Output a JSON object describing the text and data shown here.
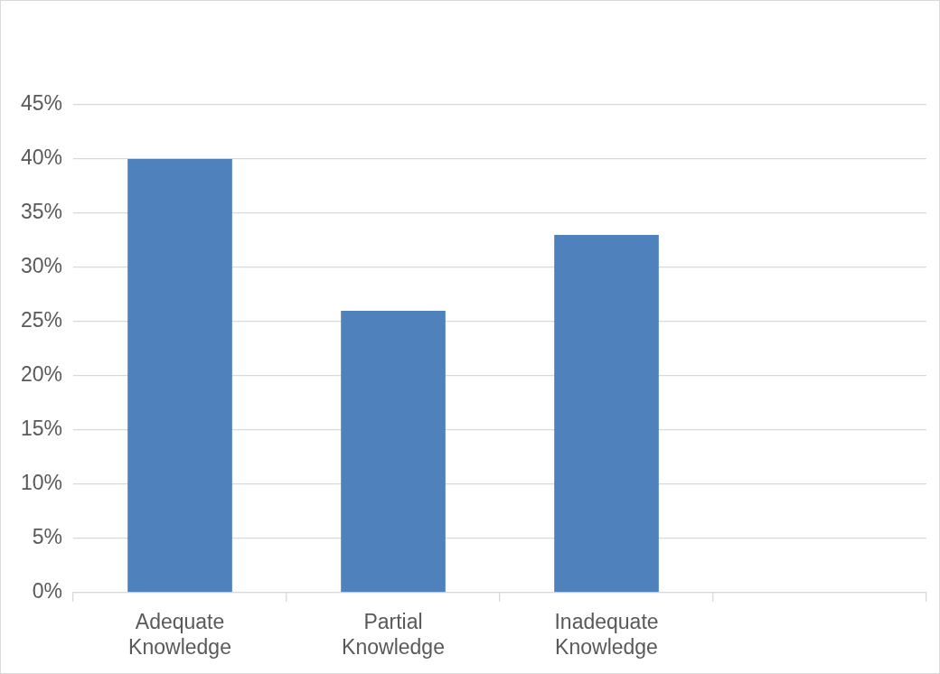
{
  "chart_data": {
    "type": "bar",
    "categories": [
      "Adequate Knowledge",
      "Partial Knowledge",
      "Inadequate Knowledge",
      null
    ],
    "values": [
      40,
      26,
      33,
      null
    ],
    "color": "#4f81bd",
    "ylim": [
      0,
      45
    ],
    "yticks": [
      {
        "value": 0,
        "label": "0%"
      },
      {
        "value": 5,
        "label": "5%"
      },
      {
        "value": 10,
        "label": "10%"
      },
      {
        "value": 15,
        "label": "15%"
      },
      {
        "value": 20,
        "label": "20%"
      },
      {
        "value": 25,
        "label": "25%"
      },
      {
        "value": 30,
        "label": "30%"
      },
      {
        "value": 35,
        "label": "35%"
      },
      {
        "value": 40,
        "label": "40%"
      },
      {
        "value": 45,
        "label": "45%"
      }
    ],
    "grid": "y",
    "legend": false
  }
}
